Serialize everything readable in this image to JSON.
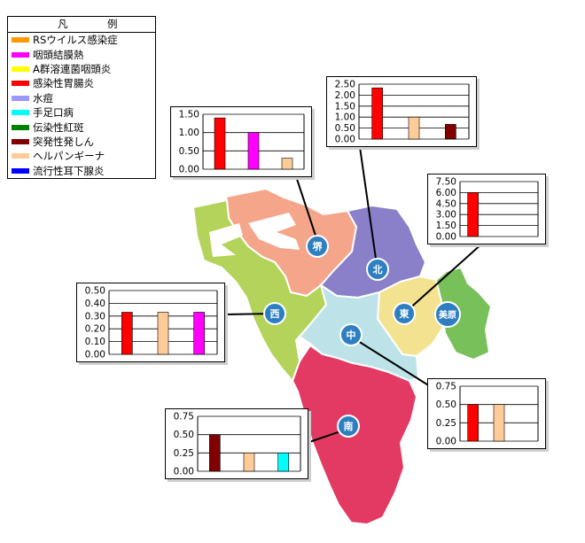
{
  "legend": {
    "title_left": "凡",
    "title_right": "例",
    "items": [
      {
        "label": "RSウイルス感染症",
        "color": "#ff9900"
      },
      {
        "label": "咽頭結膜熱",
        "color": "#ff00ff"
      },
      {
        "label": "A群溶連菌咽頭炎",
        "color": "#ffff00"
      },
      {
        "label": "感染性胃腸炎",
        "color": "#ff0000"
      },
      {
        "label": "水痘",
        "color": "#9999ff"
      },
      {
        "label": "手足口病",
        "color": "#00ffff"
      },
      {
        "label": "伝染性紅斑",
        "color": "#008000"
      },
      {
        "label": "突発性発しん",
        "color": "#800000"
      },
      {
        "label": "ヘルパンギーナ",
        "color": "#ffcc99"
      },
      {
        "label": "流行性耳下腺炎",
        "color": "#0000ff"
      }
    ]
  },
  "districts": [
    {
      "id": "sakai",
      "label": "堺",
      "color": "#f4a58a"
    },
    {
      "id": "kita",
      "label": "北",
      "color": "#8a7fc9"
    },
    {
      "id": "higashi",
      "label": "東",
      "color": "#f3e28f"
    },
    {
      "id": "mihara",
      "label": "美原",
      "color": "#77c05a"
    },
    {
      "id": "nishi",
      "label": "西",
      "color": "#b4d35a"
    },
    {
      "id": "naka",
      "label": "中",
      "color": "#bde3e8"
    },
    {
      "id": "minami",
      "label": "南",
      "color": "#e23a63"
    }
  ],
  "chart_data": [
    {
      "type": "bar",
      "district": "堺",
      "ylim": [
        0,
        1.5
      ],
      "yticks": [
        "0.00",
        "0.50",
        "1.00",
        "1.50"
      ],
      "series": [
        {
          "color": "#ff0000",
          "values": [
            1.4
          ]
        },
        {
          "color": "#ff00ff",
          "values": [
            1.0
          ]
        },
        {
          "color": "#ffcc99",
          "values": [
            0.3
          ]
        }
      ]
    },
    {
      "type": "bar",
      "district": "北",
      "ylim": [
        0,
        2.5
      ],
      "yticks": [
        "0.00",
        "0.50",
        "1.00",
        "1.50",
        "2.00",
        "2.50"
      ],
      "series": [
        {
          "color": "#ff0000",
          "values": [
            2.33
          ]
        },
        {
          "color": "#ffcc99",
          "values": [
            1.0
          ]
        },
        {
          "color": "#800000",
          "values": [
            0.67
          ]
        }
      ]
    },
    {
      "type": "bar",
      "district": "東",
      "ylim": [
        0,
        7.5
      ],
      "yticks": [
        "0.00",
        "1.50",
        "3.00",
        "4.50",
        "6.00",
        "7.50"
      ],
      "series": [
        {
          "color": "#ff0000",
          "values": [
            6.0
          ]
        }
      ]
    },
    {
      "type": "bar",
      "district": "西",
      "ylim": [
        0,
        0.5
      ],
      "yticks": [
        "0.00",
        "0.10",
        "0.20",
        "0.30",
        "0.40",
        "0.50"
      ],
      "series": [
        {
          "color": "#ff0000",
          "values": [
            0.33
          ]
        },
        {
          "color": "#ffcc99",
          "values": [
            0.33
          ]
        },
        {
          "color": "#ff00ff",
          "values": [
            0.33
          ]
        }
      ]
    },
    {
      "type": "bar",
      "district": "中",
      "ylim": [
        0,
        0.75
      ],
      "yticks": [
        "0.00",
        "0.25",
        "0.50",
        "0.75"
      ],
      "series": [
        {
          "color": "#ff0000",
          "values": [
            0.5
          ]
        },
        {
          "color": "#ffcc99",
          "values": [
            0.5
          ]
        }
      ]
    },
    {
      "type": "bar",
      "district": "南",
      "ylim": [
        0,
        0.75
      ],
      "yticks": [
        "0.00",
        "0.25",
        "0.50",
        "0.75"
      ],
      "series": [
        {
          "color": "#800000",
          "values": [
            0.5
          ]
        },
        {
          "color": "#ffcc99",
          "values": [
            0.25
          ]
        },
        {
          "color": "#00ffff",
          "values": [
            0.25
          ]
        }
      ]
    }
  ]
}
